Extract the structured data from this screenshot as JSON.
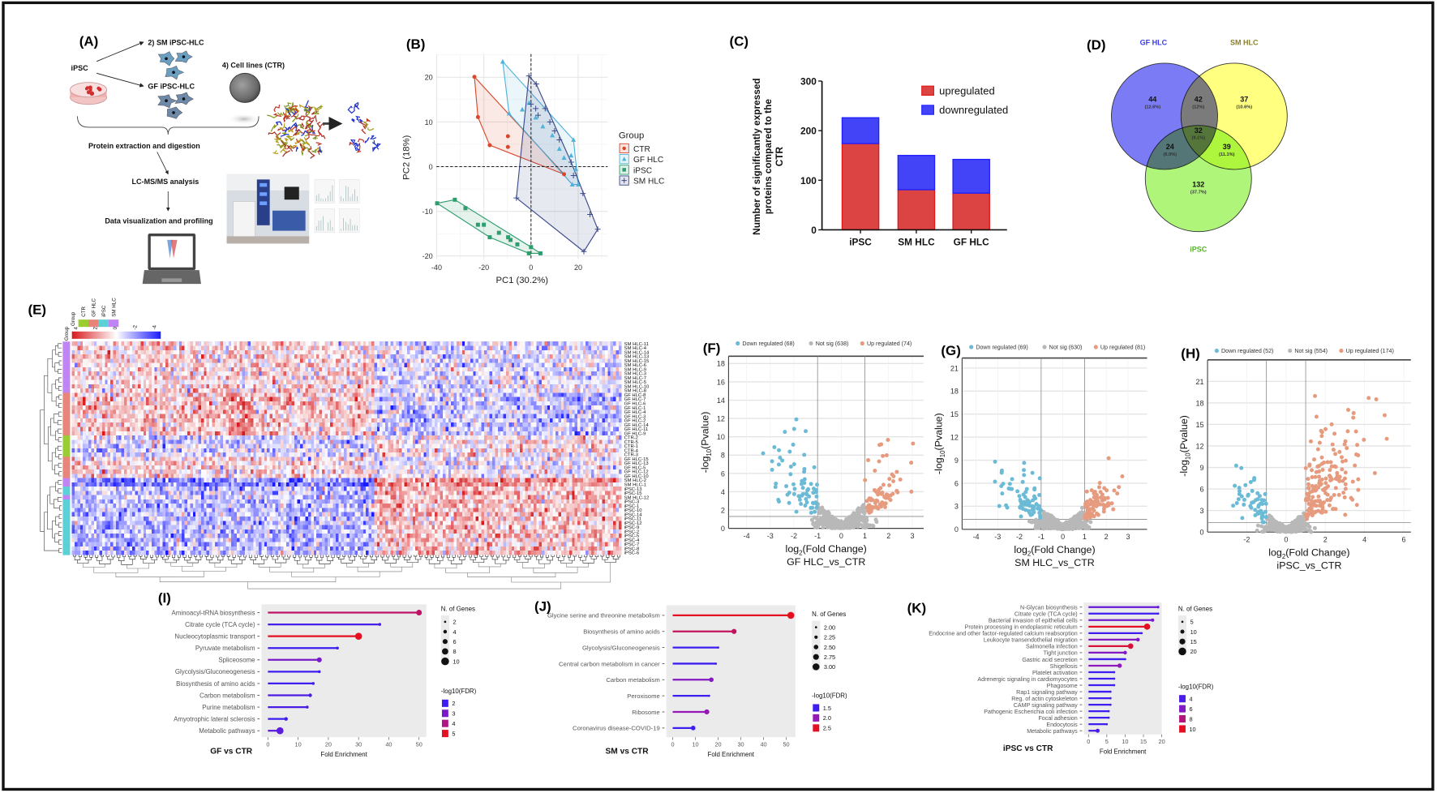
{
  "panel_labels": {
    "a": "(A)",
    "b": "(B)",
    "c": "(C)",
    "d": "(D)",
    "e": "(E)",
    "f": "(F)",
    "g": "(G)",
    "h": "(H)",
    "i": "(I)",
    "j": "(J)",
    "k": "(K)"
  },
  "panel_a": {
    "sm_label": "2) SM iPSC-HLC",
    "ipsc_label": "iPSC",
    "gf_label": "GF iPSC-HLC",
    "ctr_label": "4) Cell lines (CTR)",
    "step1": "Protein extraction and digestion",
    "step2": "LC-MS/MS analysis",
    "step3": "Data visualization and profiling"
  },
  "chart_data": [
    {
      "id": "B",
      "type": "scatter",
      "title": "",
      "xlabel": "PC1 (30.2%)",
      "ylabel": "PC2 (18%)",
      "xlim": [
        -40.1,
        32.5
      ],
      "ylim": [
        -20.7,
        25.2
      ],
      "xticks": [
        -40,
        -20,
        0,
        20
      ],
      "yticks": [
        -20,
        -10,
        0,
        10,
        20
      ],
      "grid": true,
      "legend_title": "Group",
      "legend_position": "right",
      "series": [
        {
          "name": "CTR",
          "color": "#d9472b",
          "marker": "circle",
          "points": [
            [
              -24,
              20.1
            ],
            [
              -22.5,
              11.1
            ],
            [
              -17.5,
              4.8
            ],
            [
              -9.8,
              6.8
            ],
            [
              -9.8,
              4.4
            ],
            [
              14,
              -1.7
            ]
          ]
        },
        {
          "name": "GF HLC",
          "color": "#4fb3d9",
          "marker": "triangle",
          "points": [
            [
              -12,
              23.5
            ],
            [
              -9.3,
              11.9
            ],
            [
              -3.7,
              12.8
            ],
            [
              -0.8,
              14.3
            ],
            [
              2,
              11
            ],
            [
              5,
              9
            ],
            [
              9,
              7
            ],
            [
              12,
              4
            ],
            [
              14,
              2
            ],
            [
              17,
              2.5
            ],
            [
              18,
              6
            ],
            [
              19,
              -0.5
            ],
            [
              20,
              -4
            ],
            [
              17.5,
              -4
            ]
          ]
        },
        {
          "name": "iPSC",
          "color": "#2e9e6e",
          "marker": "square",
          "points": [
            [
              -39.8,
              -8.2
            ],
            [
              -32.3,
              -7.4
            ],
            [
              -27.8,
              -9.3
            ],
            [
              -22.5,
              -13
            ],
            [
              -20,
              -13
            ],
            [
              -17.5,
              -15.8
            ],
            [
              -13.6,
              -14.8
            ],
            [
              -9.7,
              -15.8
            ],
            [
              -8.7,
              -16.4
            ],
            [
              -5.8,
              -17.4
            ],
            [
              -0.9,
              -19.4
            ],
            [
              0,
              -18
            ],
            [
              4,
              -19.4
            ]
          ]
        },
        {
          "name": "SM HLC",
          "color": "#3b4a8a",
          "marker": "plus",
          "points": [
            [
              -0.9,
              20.3
            ],
            [
              2.2,
              18.5
            ],
            [
              0,
              14
            ],
            [
              2,
              13
            ],
            [
              3,
              11.5
            ],
            [
              6,
              13
            ],
            [
              8,
              10
            ],
            [
              10,
              8
            ],
            [
              12,
              6
            ],
            [
              17,
              1
            ],
            [
              18,
              -2
            ],
            [
              22,
              -6
            ],
            [
              25,
              -10.7
            ],
            [
              28.3,
              -14
            ],
            [
              22.4,
              -19
            ],
            [
              -6.2,
              -7
            ]
          ]
        }
      ]
    },
    {
      "id": "C",
      "type": "bar",
      "stacked": true,
      "categories": [
        "iPSC",
        "SM HLC",
        "GF HLC"
      ],
      "series": [
        {
          "name": "upregulated",
          "color": "#dc4444",
          "values": [
            174,
            81,
            74
          ]
        },
        {
          "name": "downregulated",
          "color": "#4343f8",
          "values": [
            52,
            69,
            68
          ]
        }
      ],
      "ylabel_lines": [
        "Number of significantly expressed",
        "proteins compared to the",
        "CTR"
      ],
      "ylim": [
        0,
        300
      ],
      "yticks": [
        0,
        100,
        200,
        300
      ],
      "legend_position": "top-right"
    },
    {
      "id": "D",
      "type": "venn",
      "sets": [
        {
          "name": "GF HLC",
          "color": "#7b7bf6",
          "label_color": "#3a3af0"
        },
        {
          "name": "SM HLC",
          "color": "#ffff80",
          "label_color": "#8a8030"
        },
        {
          "name": "iPSC",
          "color": "#aef57a",
          "label_color": "#5ab030"
        }
      ],
      "regions": [
        {
          "sets": [
            "GF HLC"
          ],
          "count": "44",
          "pct": "(12.6%)"
        },
        {
          "sets": [
            "GF HLC",
            "SM HLC"
          ],
          "count": "42",
          "pct": "(12%)"
        },
        {
          "sets": [
            "SM HLC"
          ],
          "count": "37",
          "pct": "(10.6%)"
        },
        {
          "sets": [
            "GF HLC",
            "SM HLC",
            "iPSC"
          ],
          "count": "32",
          "pct": "(9.1%)"
        },
        {
          "sets": [
            "GF HLC",
            "iPSC"
          ],
          "count": "24",
          "pct": "(6.9%)"
        },
        {
          "sets": [
            "SM HLC",
            "iPSC"
          ],
          "count": "39",
          "pct": "(11.1%)"
        },
        {
          "sets": [
            "iPSC"
          ],
          "count": "132",
          "pct": "(37.7%)"
        }
      ]
    },
    {
      "id": "E",
      "type": "heatmap",
      "group_title": "Group",
      "groups": [
        {
          "name": "CTR",
          "color": "#9acd32"
        },
        {
          "name": "GF HLC",
          "color": "#e8857a"
        },
        {
          "name": "iPSC",
          "color": "#5bd1d7"
        },
        {
          "name": "SM HLC",
          "color": "#c084f5"
        }
      ],
      "color_scale": {
        "ticks": [
          "4",
          "2",
          "0",
          "-2",
          "-4"
        ],
        "high": "#d7191c",
        "mid": "#ffffff",
        "low": "#1a1aff"
      },
      "row_labels": [
        "SM HLC-11",
        "SM HLC-4",
        "SM HLC-14",
        "SM HLC-13",
        "SM HLC-15",
        "SM HLC-6",
        "SM HLC-9",
        "SM HLC-3",
        "SM HLC-7",
        "SM HLC-5",
        "SM HLC-10",
        "SM HLC-8",
        "GF HLC-8",
        "GF HLC-7",
        "GF HLC-6",
        "GF HLC-1",
        "GF HLC-4",
        "GF HLC-3",
        "GF HLC-2",
        "GF HLC-14",
        "GF HLC-11",
        "GF HLC-9",
        "CTR-2",
        "CTR-5",
        "CTR-1",
        "CTR-4",
        "CTR-3",
        "GF HLC-15",
        "GF HLC-13",
        "GF HLC-5",
        "GF HLC-12",
        "GF HLC-10",
        "SM HLC-2",
        "SM HLC-1",
        "iPSC-13",
        "iPSC-15",
        "SM HLC-12",
        "iPSC-3",
        "iPSC-1",
        "iPSC-10",
        "iPSC-14",
        "iPSC-11",
        "iPSC-12",
        "iPSC-9",
        "iPSC-2",
        "iPSC-5",
        "iPSC-4",
        "iPSC-7",
        "iPSC-8",
        "iPSC-6"
      ]
    },
    {
      "id": "F",
      "type": "scatter",
      "subtype": "volcano",
      "legend": [
        {
          "label": "Down regulated (68)",
          "color": "#6bbad6"
        },
        {
          "label": "Not sig (638)",
          "color": "#b8b8b8"
        },
        {
          "label": "Up regulated (74)",
          "color": "#e79b7e"
        }
      ],
      "counts": {
        "down": 68,
        "not_sig": 638,
        "up": 74
      },
      "xlim": [
        -4.76,
        3.48
      ],
      "ylim": [
        0,
        18.8
      ],
      "xticks": [
        -4,
        -3,
        -2,
        -1,
        0,
        1,
        2,
        3
      ],
      "yticks": [
        0,
        2,
        4,
        6,
        8,
        10,
        12,
        14,
        16,
        18
      ],
      "xlabel": {
        "pre": "log",
        "sub": "2",
        "post": "(Fold Change)"
      },
      "ylabel": {
        "pre": "-log",
        "sub": "10",
        "post": "(Pvalue)"
      },
      "subtitle": "GF HLC_vs_CTR"
    },
    {
      "id": "G",
      "type": "scatter",
      "subtype": "volcano",
      "legend": [
        {
          "label": "Down regulated (69)",
          "color": "#6bbad6"
        },
        {
          "label": "Not sig (630)",
          "color": "#b8b8b8"
        },
        {
          "label": "Up regulated (81)",
          "color": "#e79b7e"
        }
      ],
      "counts": {
        "down": 69,
        "not_sig": 630,
        "up": 81
      },
      "xlim": [
        -4.64,
        3.88
      ],
      "ylim": [
        0,
        22.3
      ],
      "xticks": [
        -4,
        -3,
        -2,
        -1,
        0,
        1,
        2,
        3
      ],
      "yticks": [
        0,
        3,
        6,
        9,
        12,
        15,
        18,
        21
      ],
      "xlabel": {
        "pre": "log",
        "sub": "2",
        "post": "(Fold Change)"
      },
      "ylabel": {
        "pre": "-log",
        "sub": "10",
        "post": "(Pvalue)"
      },
      "subtitle": "SM HLC_vs_CTR"
    },
    {
      "id": "H",
      "type": "scatter",
      "subtype": "volcano",
      "legend": [
        {
          "label": "Down regulated (52)",
          "color": "#6bbad6"
        },
        {
          "label": "Not sig (554)",
          "color": "#b8b8b8"
        },
        {
          "label": "Up regulated (174)",
          "color": "#e79b7e"
        }
      ],
      "counts": {
        "down": 52,
        "not_sig": 554,
        "up": 174
      },
      "xlim": [
        -4.0,
        6.36
      ],
      "ylim": [
        0,
        24
      ],
      "xticks": [
        -2,
        0,
        2,
        4,
        6
      ],
      "yticks": [
        0,
        3,
        6,
        9,
        12,
        15,
        18,
        21
      ],
      "xlabel": {
        "pre": "log",
        "sub": "2",
        "post": "(Fold Change)"
      },
      "ylabel": {
        "pre": "-log",
        "sub": "10",
        "post": "(Pvalue)"
      },
      "subtitle": "iPSC_vs_CTR"
    },
    {
      "id": "I",
      "type": "lollipop",
      "title": "GF vs CTR",
      "xlabel": "Fold Enrichment",
      "xticks": [
        0,
        10,
        20,
        30,
        40,
        50
      ],
      "size_title": "N. of Genes",
      "size_ticks": [
        "2",
        "4",
        "6",
        "8",
        "10"
      ],
      "size_range": [
        2,
        10
      ],
      "color_title": "-log10(FDR)",
      "color_ticks": [
        "2",
        "3",
        "4",
        "5"
      ],
      "color_range": [
        2,
        5
      ],
      "items": [
        {
          "label": "Aminoacyl-tRNA biosynthesis",
          "fold": 50,
          "genes": 7,
          "fdr": 4.3
        },
        {
          "label": "Citrate cycle (TCA cycle)",
          "fold": 37,
          "genes": 3,
          "fdr": 2.2
        },
        {
          "label": "Nucleocytoplasmic transport",
          "fold": 30,
          "genes": 9,
          "fdr": 5
        },
        {
          "label": "Pyruvate metabolism",
          "fold": 23,
          "genes": 3,
          "fdr": 2
        },
        {
          "label": "Spliceosome",
          "fold": 17,
          "genes": 6,
          "fdr": 3
        },
        {
          "label": "Glycolysis/Gluconeogenesis",
          "fold": 17,
          "genes": 3,
          "fdr": 2
        },
        {
          "label": "Biosynthesis of amino acids",
          "fold": 15,
          "genes": 3,
          "fdr": 1.9
        },
        {
          "label": "Carbon metabolism",
          "fold": 14,
          "genes": 4,
          "fdr": 2.3
        },
        {
          "label": "Purine metabolism",
          "fold": 13,
          "genes": 3,
          "fdr": 2.3
        },
        {
          "label": "Amyotrophic lateral sclerosis",
          "fold": 6,
          "genes": 4,
          "fdr": 2
        },
        {
          "label": "Metabolic pathways",
          "fold": 4,
          "genes": 9,
          "fdr": 2.5
        }
      ]
    },
    {
      "id": "J",
      "type": "lollipop",
      "title": "SM vs CTR",
      "xlabel": "Fold Enrichment",
      "xticks": [
        0,
        10,
        20,
        30,
        40,
        50
      ],
      "size_title": "N. of Genes",
      "size_ticks": [
        "2.00",
        "2.25",
        "2.50",
        "2.75",
        "3.00"
      ],
      "size_range": [
        2,
        3
      ],
      "color_title": "-log10(FDR)",
      "color_ticks": [
        "1.5",
        "2.0",
        "2.5"
      ],
      "color_range": [
        1.5,
        2.5
      ],
      "items": [
        {
          "label": "Glycine serine and threonine metabolism",
          "fold": 52,
          "genes": 3,
          "fdr": 2.6
        },
        {
          "label": "Biosynthesis of amino acids",
          "fold": 27,
          "genes": 2.6,
          "fdr": 2.3
        },
        {
          "label": "Glycolysis/Gluconeogenesis",
          "fold": 20,
          "genes": 2,
          "fdr": 1.4
        },
        {
          "label": "Central carbon metabolism in cancer",
          "fold": 19,
          "genes": 2,
          "fdr": 1.4
        },
        {
          "label": "Carbon metabolism",
          "fold": 17,
          "genes": 2.5,
          "fdr": 1.9
        },
        {
          "label": "Peroxisome",
          "fold": 16,
          "genes": 2,
          "fdr": 1.4
        },
        {
          "label": "Ribosome",
          "fold": 15,
          "genes": 2.6,
          "fdr": 2.0
        },
        {
          "label": "Coronavirus disease-COVID-19",
          "fold": 9,
          "genes": 2.5,
          "fdr": 1.4
        }
      ]
    },
    {
      "id": "K",
      "type": "lollipop",
      "title": "iPSC vs CTR",
      "xlabel": "Fold Enrichment",
      "xticks": [
        0,
        5,
        10,
        15,
        20
      ],
      "size_title": "N. of Genes",
      "size_ticks": [
        "5",
        "10",
        "15",
        "20"
      ],
      "size_range": [
        5,
        20
      ],
      "color_title": "-log10(FDR)",
      "color_ticks": [
        "4",
        "6",
        "8",
        "10"
      ],
      "color_range": [
        3.5,
        10
      ],
      "items": [
        {
          "label": "N-Glycan biosynthesis",
          "fold": 19,
          "genes": 6,
          "fdr": 5
        },
        {
          "label": "Citrate cycle (TCA cycle)",
          "fold": 19,
          "genes": 4,
          "fdr": 3.5
        },
        {
          "label": "Bacterial invasion of epithelial cells",
          "fold": 17.5,
          "genes": 8,
          "fdr": 5.5
        },
        {
          "label": "Protein processing in endoplasmic reticulum",
          "fold": 16,
          "genes": 16,
          "fdr": 10
        },
        {
          "label": "Endocrine and other factor-regulated calcium reabsorption",
          "fold": 14.5,
          "genes": 5,
          "fdr": 3.5
        },
        {
          "label": "Leukocyte transendothelial migration",
          "fold": 13.5,
          "genes": 9,
          "fdr": 6
        },
        {
          "label": "Salmonella infection",
          "fold": 11.5,
          "genes": 14,
          "fdr": 9.5
        },
        {
          "label": "Tight junction",
          "fold": 10,
          "genes": 9,
          "fdr": 6
        },
        {
          "label": "Gastric acid secretion",
          "fold": 10,
          "genes": 5,
          "fdr": 3.5
        },
        {
          "label": "Shigellosis",
          "fold": 8.5,
          "genes": 11,
          "fdr": 6.5
        },
        {
          "label": "Platelet activation",
          "fold": 7,
          "genes": 5,
          "fdr": 3.5
        },
        {
          "label": "Adrenergic signaling in cardiomyocytes",
          "fold": 7,
          "genes": 5,
          "fdr": 3.5
        },
        {
          "label": "Phagosome",
          "fold": 7,
          "genes": 5,
          "fdr": 3.5
        },
        {
          "label": "Rap1 signaling pathway",
          "fold": 6,
          "genes": 5,
          "fdr": 3.5
        },
        {
          "label": "Reg. of actin cytoskeleton",
          "fold": 6,
          "genes": 5,
          "fdr": 3.5
        },
        {
          "label": "CAMP signaling pathway",
          "fold": 6,
          "genes": 5,
          "fdr": 3.5
        },
        {
          "label": "Pathogenic Escherichia coli infection",
          "fold": 5.5,
          "genes": 5,
          "fdr": 3.5
        },
        {
          "label": "Focal adhesion",
          "fold": 5.5,
          "genes": 5,
          "fdr": 3.5
        },
        {
          "label": "Endocytosis",
          "fold": 5,
          "genes": 5,
          "fdr": 3.5
        },
        {
          "label": "Metabolic pathways",
          "fold": 2.5,
          "genes": 10,
          "fdr": 4
        }
      ]
    }
  ]
}
